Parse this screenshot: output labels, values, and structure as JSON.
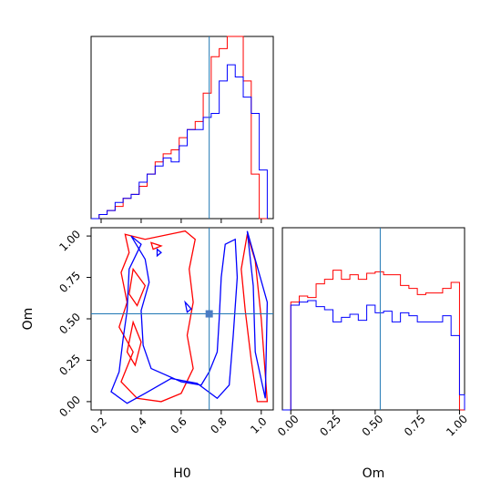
{
  "chart_data": {
    "type": "corner",
    "parameters": [
      "H0",
      "Om"
    ],
    "truths": {
      "H0": 0.74,
      "Om": 0.53
    },
    "truth_marker_color": "#4a7cc4",
    "truth_line_color": "#1f77b4",
    "series_colors": {
      "red": "#ff0000",
      "blue": "#0000ff"
    },
    "panels": [
      {
        "id": "H0_hist",
        "type": "histogram",
        "xlim": [
          0.15,
          1.06
        ],
        "ylim": [
          0,
          45
        ],
        "bin_edges": [
          0.15,
          0.19,
          0.23,
          0.27,
          0.31,
          0.35,
          0.39,
          0.43,
          0.47,
          0.51,
          0.55,
          0.59,
          0.63,
          0.67,
          0.71,
          0.75,
          0.79,
          0.83,
          0.87,
          0.91,
          0.95,
          0.99,
          1.03
        ],
        "series": [
          {
            "color": "red",
            "counts": [
              0,
              1,
              2,
              3,
              5,
              6,
              8,
              11,
              14,
              16,
              17,
              20,
              22,
              24,
              31,
              40,
              42,
              45,
              45,
              34,
              11,
              0
            ]
          },
          {
            "color": "blue",
            "counts": [
              0,
              1,
              2,
              4,
              5,
              6,
              9,
              11,
              13,
              15,
              14,
              18,
              22,
              22,
              25,
              26,
              34,
              38,
              35,
              30,
              26,
              12
            ]
          }
        ]
      },
      {
        "id": "Om_hist",
        "type": "histogram",
        "xlim": [
          -0.05,
          1.03
        ],
        "ylim": [
          0,
          120
        ],
        "bin_edges": [
          -0.05,
          0.0,
          0.05,
          0.1,
          0.15,
          0.2,
          0.25,
          0.3,
          0.35,
          0.4,
          0.45,
          0.5,
          0.55,
          0.6,
          0.65,
          0.7,
          0.75,
          0.8,
          0.85,
          0.9,
          0.95,
          1.0,
          1.03
        ],
        "series": [
          {
            "color": "red",
            "counts": [
              0,
              71,
              75,
              74,
              83,
              86,
              92,
              86,
              89,
              86,
              90,
              91,
              89,
              89,
              82,
              80,
              76,
              77,
              77,
              80,
              84,
              0
            ]
          },
          {
            "color": "blue",
            "counts": [
              0,
              69,
              71,
              72,
              68,
              66,
              58,
              61,
              63,
              59,
              69,
              64,
              65,
              58,
              64,
              62,
              58,
              58,
              58,
              62,
              49,
              10
            ]
          }
        ]
      },
      {
        "id": "H0_Om_contour",
        "type": "contour",
        "xlim": [
          0.15,
          1.06
        ],
        "ylim": [
          -0.05,
          1.05
        ],
        "xticks": [
          "0.2",
          "0.4",
          "0.6",
          "0.8",
          "1.0"
        ],
        "yticks": [
          "0.00",
          "0.25",
          "0.50",
          "0.75",
          "1.00"
        ],
        "series": [
          {
            "color": "red",
            "contours": [
              [
                [
                  0.32,
                  1.01
                ],
                [
                  0.42,
                  0.98
                ],
                [
                  0.62,
                  1.03
                ],
                [
                  0.67,
                  0.98
                ],
                [
                  0.64,
                  0.8
                ],
                [
                  0.66,
                  0.6
                ],
                [
                  0.63,
                  0.4
                ],
                [
                  0.66,
                  0.2
                ],
                [
                  0.6,
                  0.05
                ],
                [
                  0.5,
                  0.0
                ],
                [
                  0.38,
                  0.02
                ],
                [
                  0.3,
                  0.12
                ],
                [
                  0.36,
                  0.3
                ],
                [
                  0.29,
                  0.45
                ],
                [
                  0.33,
                  0.6
                ],
                [
                  0.3,
                  0.78
                ],
                [
                  0.34,
                  0.9
                ]
              ],
              [
                [
                  0.93,
                  1.01
                ],
                [
                  0.97,
                  0.85
                ],
                [
                  1.0,
                  0.5
                ],
                [
                  1.03,
                  0.0
                ],
                [
                  0.98,
                  0.0
                ],
                [
                  0.95,
                  0.25
                ],
                [
                  0.92,
                  0.55
                ],
                [
                  0.9,
                  0.8
                ]
              ],
              [
                [
                  0.36,
                  0.8
                ],
                [
                  0.42,
                  0.7
                ],
                [
                  0.38,
                  0.58
                ],
                [
                  0.34,
                  0.65
                ]
              ],
              [
                [
                  0.36,
                  0.48
                ],
                [
                  0.4,
                  0.36
                ],
                [
                  0.37,
                  0.22
                ],
                [
                  0.33,
                  0.3
                ]
              ],
              [
                [
                  0.45,
                  0.96
                ],
                [
                  0.5,
                  0.94
                ],
                [
                  0.46,
                  0.92
                ]
              ]
            ]
          },
          {
            "color": "blue",
            "contours": [
              [
                [
                  0.35,
                  1.0
                ],
                [
                  0.4,
                  0.95
                ],
                [
                  0.34,
                  0.8
                ],
                [
                  0.33,
                  0.55
                ],
                [
                  0.31,
                  0.38
                ],
                [
                  0.29,
                  0.18
                ],
                [
                  0.25,
                  0.06
                ],
                [
                  0.33,
                  -0.01
                ],
                [
                  0.42,
                  0.05
                ],
                [
                  0.55,
                  0.14
                ],
                [
                  0.68,
                  0.11
                ],
                [
                  0.78,
                  0.02
                ],
                [
                  0.84,
                  0.1
                ],
                [
                  0.86,
                  0.4
                ],
                [
                  0.88,
                  0.75
                ],
                [
                  0.87,
                  0.98
                ],
                [
                  0.82,
                  0.95
                ],
                [
                  0.8,
                  0.75
                ],
                [
                  0.79,
                  0.5
                ],
                [
                  0.78,
                  0.3
                ],
                [
                  0.74,
                  0.18
                ],
                [
                  0.7,
                  0.1
                ],
                [
                  0.6,
                  0.12
                ],
                [
                  0.45,
                  0.2
                ],
                [
                  0.41,
                  0.34
                ],
                [
                  0.4,
                  0.55
                ],
                [
                  0.44,
                  0.72
                ],
                [
                  0.42,
                  0.86
                ]
              ],
              [
                [
                  0.93,
                  1.03
                ],
                [
                  0.96,
                  0.7
                ],
                [
                  0.97,
                  0.3
                ],
                [
                  1.02,
                  0.02
                ],
                [
                  1.03,
                  0.6
                ]
              ],
              [
                [
                  0.62,
                  0.6
                ],
                [
                  0.65,
                  0.56
                ],
                [
                  0.63,
                  0.54
                ]
              ],
              [
                [
                  0.48,
                  0.92
                ],
                [
                  0.5,
                  0.9
                ],
                [
                  0.48,
                  0.88
                ]
              ]
            ]
          }
        ]
      }
    ],
    "xlabel_bottom_left": "H0",
    "xlabel_bottom_right": "Om",
    "ylabel_contour": "Om",
    "om_hist_xticks": [
      "0.00",
      "0.25",
      "0.50",
      "0.75",
      "1.00"
    ]
  }
}
